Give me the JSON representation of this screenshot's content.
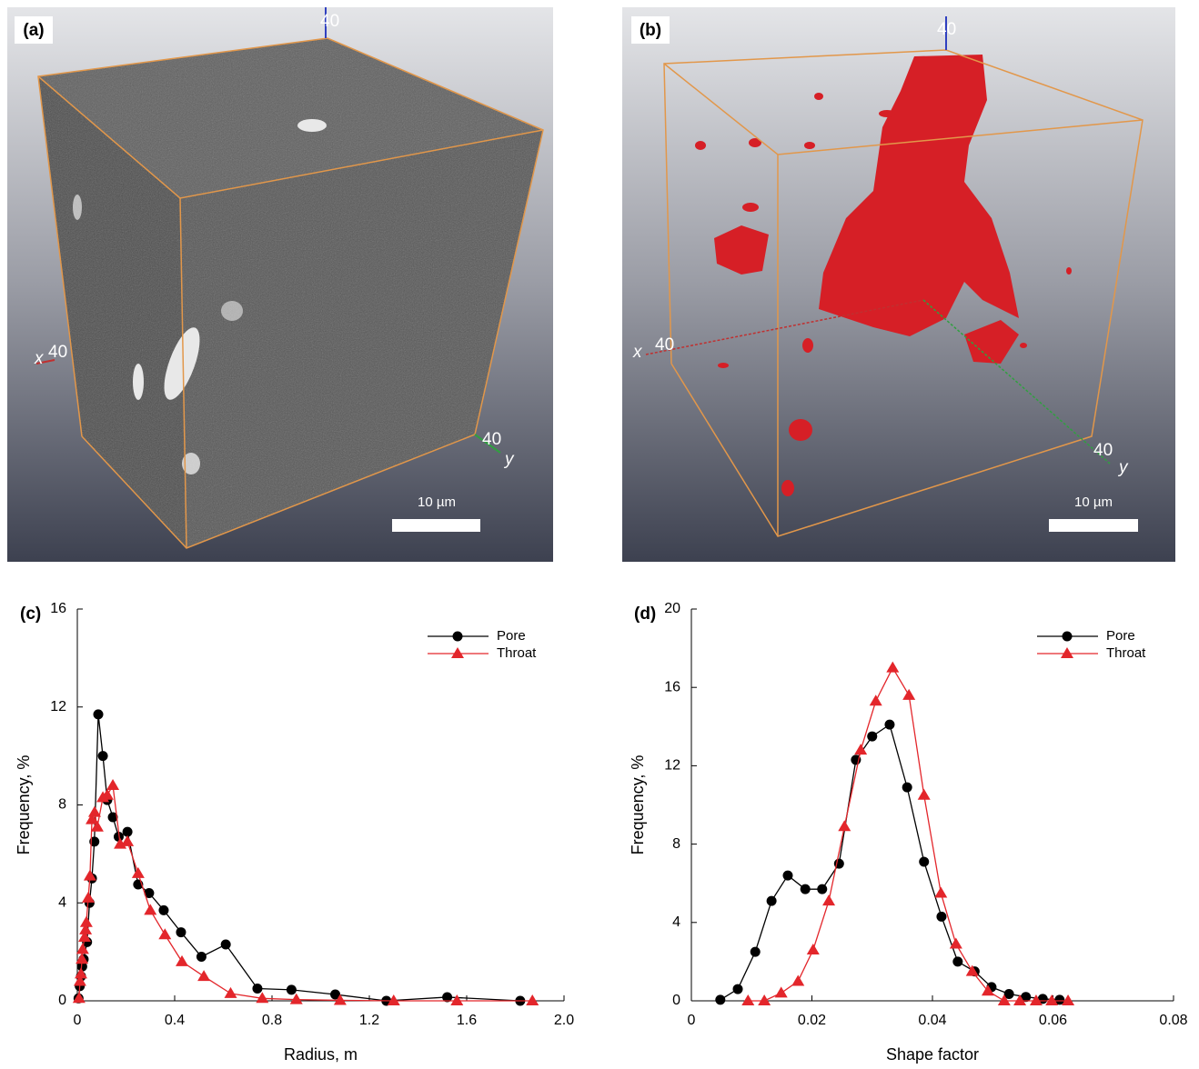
{
  "panels": [
    {
      "label": "(a)",
      "x_axis": "x",
      "x_value": "40",
      "y_axis": "y",
      "y_value": "40",
      "z_value": "40",
      "scale": "10 µm"
    },
    {
      "label": "(b)",
      "x_axis": "x",
      "x_value": "40",
      "y_axis": "y",
      "y_value": "40",
      "z_value": "40",
      "scale": "10 µm"
    }
  ],
  "chart_data": [
    {
      "type": "line",
      "panel": "(c)",
      "x_label": "Radius, m",
      "y_label": "Frequency, %",
      "xlim": [
        0,
        2
      ],
      "xticks": [
        0,
        0.4,
        0.8,
        1.2,
        1.6,
        {
          "value": 2,
          "label": "2.0"
        }
      ],
      "ylim": [
        0,
        16
      ],
      "yticks": [
        0,
        4,
        8,
        12,
        16
      ],
      "legend": "upper right",
      "series": [
        {
          "name": "Pore",
          "color": "#000000",
          "marker": "circle",
          "x": [
            0.005,
            0.01,
            0.015,
            0.02,
            0.026,
            0.04,
            0.05,
            0.06,
            0.07,
            0.086,
            0.105,
            0.123,
            0.146,
            0.17,
            0.206,
            0.25,
            0.295,
            0.355,
            0.426,
            0.51,
            0.61,
            0.74,
            0.88,
            1.06,
            1.27,
            1.52,
            1.82
          ],
          "values": [
            0.1,
            0.6,
            1.0,
            1.4,
            1.7,
            2.4,
            4.0,
            5.0,
            6.5,
            11.7,
            10.0,
            8.2,
            7.5,
            6.7,
            6.9,
            4.75,
            4.4,
            3.7,
            2.8,
            1.8,
            2.3,
            0.5,
            0.45,
            0.26,
            0,
            0.15,
            0
          ]
        },
        {
          "name": "Throat",
          "color": "#e3262b",
          "marker": "triangle",
          "x": [
            0.007,
            0.011,
            0.015,
            0.019,
            0.022,
            0.03,
            0.034,
            0.037,
            0.045,
            0.052,
            0.06,
            0.071,
            0.082,
            0.105,
            0.123,
            0.146,
            0.176,
            0.206,
            0.25,
            0.3,
            0.36,
            0.43,
            0.52,
            0.63,
            0.76,
            0.9,
            1.08,
            1.3,
            1.56,
            1.87
          ],
          "values": [
            0.1,
            0.8,
            1.1,
            1.7,
            2.1,
            2.6,
            2.9,
            3.2,
            4.2,
            5.1,
            7.4,
            7.7,
            7.1,
            8.3,
            8.4,
            8.8,
            6.4,
            6.5,
            5.2,
            3.7,
            2.7,
            1.6,
            1.0,
            0.3,
            0.1,
            0.05,
            0.02,
            0,
            0,
            0
          ]
        }
      ]
    },
    {
      "type": "line",
      "panel": "(d)",
      "x_label": "Shape factor",
      "y_label": "Frequency, %",
      "xlim": [
        0,
        0.08
      ],
      "xticks": [
        0,
        0.02,
        0.04,
        0.06,
        0.08
      ],
      "ylim": [
        0,
        20
      ],
      "yticks": [
        0,
        4,
        8,
        12,
        16,
        20
      ],
      "legend": "upper right",
      "series": [
        {
          "name": "Pore",
          "color": "#000000",
          "marker": "circle",
          "x": [
            0.0048,
            0.0077,
            0.0106,
            0.0133,
            0.016,
            0.0189,
            0.0217,
            0.0245,
            0.0273,
            0.03,
            0.0329,
            0.0358,
            0.0386,
            0.0415,
            0.0442,
            0.047,
            0.0498,
            0.0527,
            0.0555,
            0.0583,
            0.0611
          ],
          "values": [
            0.05,
            0.6,
            2.5,
            5.1,
            6.4,
            5.7,
            5.7,
            7.0,
            12.3,
            13.5,
            14.1,
            10.9,
            7.1,
            4.3,
            2.0,
            1.5,
            0.7,
            0.35,
            0.2,
            0.1,
            0.05
          ]
        },
        {
          "name": "Throat",
          "color": "#e3262b",
          "marker": "triangle",
          "x": [
            0.0094,
            0.0121,
            0.0149,
            0.0177,
            0.0202,
            0.0228,
            0.0254,
            0.0281,
            0.0306,
            0.0334,
            0.0361,
            0.0386,
            0.0414,
            0.0439,
            0.0466,
            0.0492,
            0.0519,
            0.0545,
            0.0572,
            0.0598,
            0.0625
          ],
          "values": [
            0,
            0,
            0.4,
            1.0,
            2.6,
            5.1,
            8.9,
            12.8,
            15.3,
            17.0,
            15.6,
            10.5,
            5.5,
            2.9,
            1.5,
            0.5,
            0,
            0,
            0,
            0,
            0
          ]
        }
      ]
    }
  ]
}
